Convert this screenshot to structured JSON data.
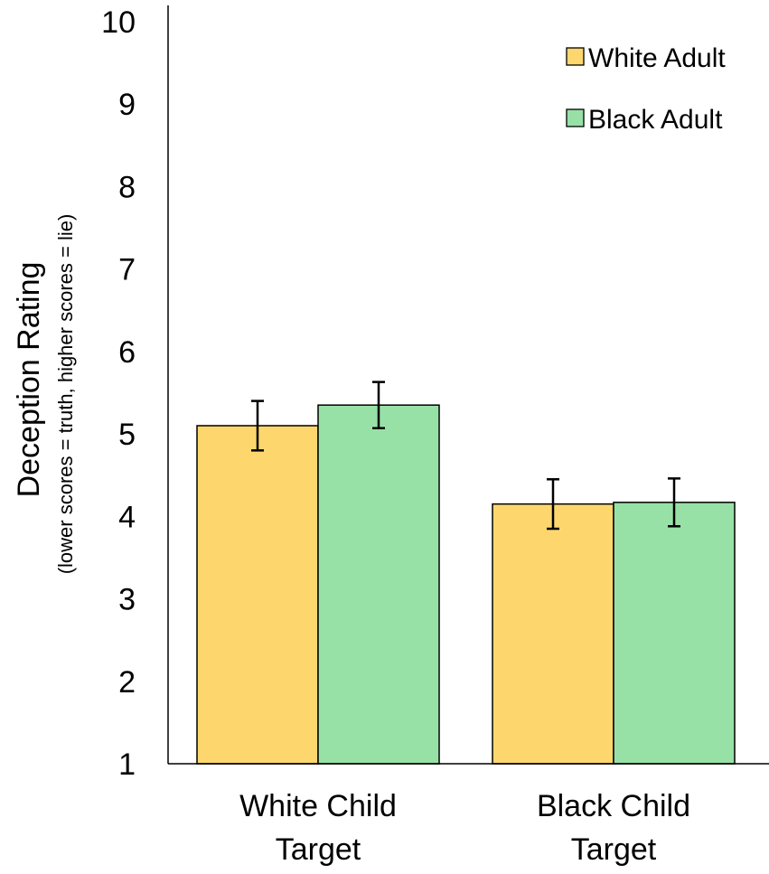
{
  "chart_data": {
    "type": "bar",
    "title": "",
    "ylabel": "Deception Rating",
    "ylabel_sub": "(lower scores = truth, higher scores = lie)",
    "xlabel": "",
    "ylim": [
      1,
      10
    ],
    "yticks": [
      "1",
      "2",
      "3",
      "4",
      "5",
      "6",
      "7",
      "8",
      "9",
      "10"
    ],
    "categories": [
      {
        "line1": "White Child",
        "line2": "Target"
      },
      {
        "line1": "Black Child",
        "line2": "Target"
      }
    ],
    "series": [
      {
        "name": "White Adult",
        "color": "#FDD76E",
        "values": [
          5.1,
          4.15
        ],
        "errors": [
          0.3,
          0.3
        ]
      },
      {
        "name": "Black Adult",
        "color": "#98E1A6",
        "values": [
          5.35,
          4.17
        ],
        "errors": [
          0.28,
          0.29
        ]
      }
    ],
    "legend_position": "top-right",
    "grid": false
  }
}
